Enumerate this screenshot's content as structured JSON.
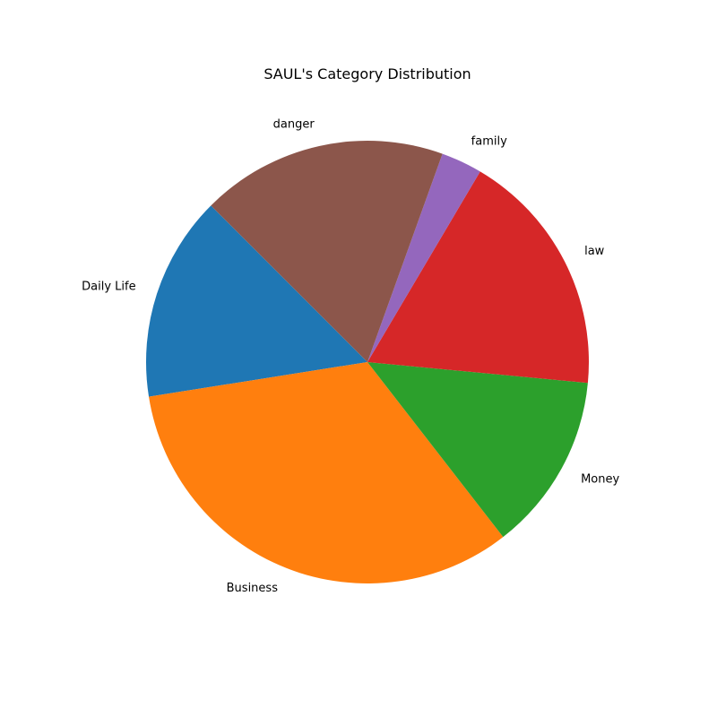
{
  "chart_data": {
    "type": "pie",
    "title": "SAUL's Category Distribution",
    "start_angle_deg": 135,
    "direction": "counterclockwise",
    "slices": [
      {
        "label": "Daily Life",
        "value": 15,
        "color": "#1f77b4"
      },
      {
        "label": "Business",
        "value": 33,
        "color": "#ff7f0e"
      },
      {
        "label": "Money",
        "value": 13,
        "color": "#2ca02c"
      },
      {
        "label": "law",
        "value": 18,
        "color": "#d62728"
      },
      {
        "label": "family",
        "value": 3,
        "color": "#9467bd"
      },
      {
        "label": "danger",
        "value": 18,
        "color": "#8c564b"
      }
    ]
  }
}
